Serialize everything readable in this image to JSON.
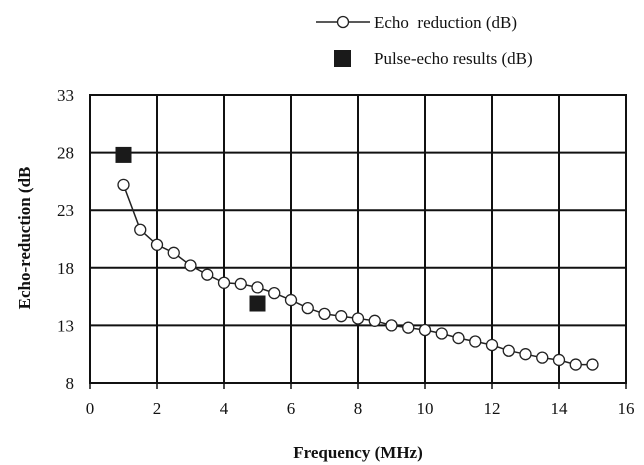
{
  "chart_data": {
    "type": "scatter",
    "title": "",
    "xlabel": "Frequency (MHz)",
    "ylabel": "Echo-reduction (dB",
    "xlim": [
      0,
      16
    ],
    "ylim": [
      8,
      33
    ],
    "xticks": [
      0,
      2,
      4,
      6,
      8,
      10,
      12,
      14,
      16
    ],
    "yticks": [
      8,
      13,
      18,
      23,
      28,
      33
    ],
    "grid": true,
    "legend_position": "top-right",
    "series": [
      {
        "name": "Echo  reduction (dB)",
        "style": "line-open-circle",
        "color": "#222222",
        "x": [
          1,
          1.5,
          2,
          2.5,
          3,
          3.5,
          4,
          4.5,
          5,
          5.5,
          6,
          6.5,
          7,
          7.5,
          8,
          8.5,
          9,
          9.5,
          10,
          10.5,
          11,
          11.5,
          12,
          12.5,
          13,
          13.5,
          14,
          14.5,
          15
        ],
        "y": [
          25.2,
          21.3,
          20.0,
          19.3,
          18.2,
          17.4,
          16.7,
          16.6,
          16.3,
          15.8,
          15.2,
          14.5,
          14.0,
          13.8,
          13.6,
          13.4,
          13.0,
          12.8,
          12.6,
          12.3,
          11.9,
          11.6,
          11.3,
          10.8,
          10.5,
          10.2,
          10.0,
          9.6,
          9.6
        ]
      },
      {
        "name": "Pulse-echo results (dB)",
        "style": "filled-square",
        "color": "#1a1a1a",
        "x": [
          1,
          5
        ],
        "y": [
          27.8,
          14.9
        ]
      }
    ]
  }
}
